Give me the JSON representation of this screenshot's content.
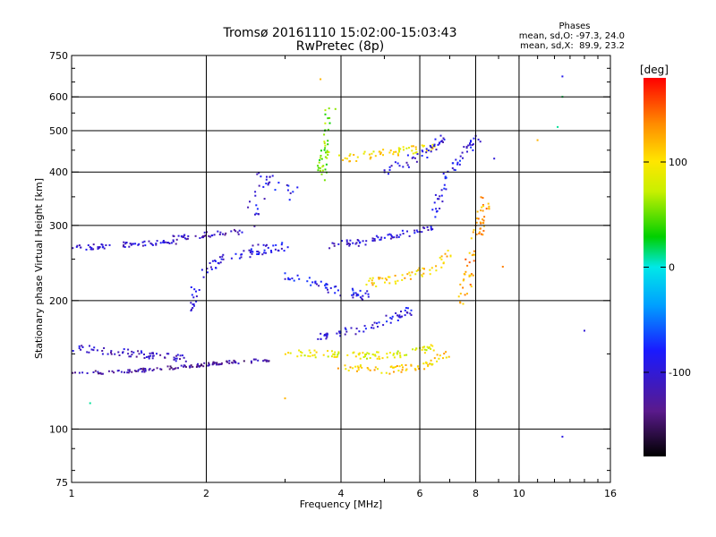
{
  "chart_data": {
    "type": "scatter",
    "title": "Tromsø 20161110 15:02:00-15:03:43",
    "subtitle": "RwPretec (8p)",
    "xlabel": "Frequency [MHz]",
    "ylabel": "Stationary phase Virtual Height [km]",
    "x_scale": "log",
    "y_scale": "log",
    "xlim": [
      1,
      16
    ],
    "ylim": [
      75,
      750
    ],
    "x_ticks": [
      1,
      2,
      4,
      6,
      8,
      10,
      16
    ],
    "x_tick_labels": [
      "1",
      "2",
      "4",
      "6",
      "8",
      "10",
      "16"
    ],
    "y_ticks": [
      75,
      100,
      200,
      300,
      400,
      500,
      600,
      750
    ],
    "y_tick_labels": [
      "75",
      "100",
      "200",
      "300",
      "400",
      "500",
      "600",
      "750"
    ],
    "grid": true,
    "grid_x": [
      2,
      4,
      6,
      8,
      10
    ],
    "grid_y": [
      100,
      200,
      300,
      400,
      500,
      600
    ],
    "phases_box": {
      "title": "Phases",
      "line_o": "mean, sd,O: -97.3, 24.0",
      "line_x": "mean, sd,X:  89.9, 23.2"
    },
    "colorbar": {
      "label": "[deg]",
      "range": [
        -180,
        180
      ],
      "ticks": [
        100,
        0,
        -100
      ],
      "tick_labels": [
        "100",
        "0",
        "-100"
      ],
      "colormap": "rainbow (black-purple-blue-cyan-green-yellow-orange-red)"
    },
    "traces": [
      {
        "x": [
          1.0,
          1.4,
          1.8,
          2.2,
          2.8
        ],
        "y": [
          135,
          137,
          140,
          143,
          145
        ],
        "phase": -125,
        "spread": 2
      },
      {
        "x": [
          1.0,
          1.3,
          1.7
        ],
        "y": [
          265,
          270,
          275
        ],
        "phase": -105,
        "spread": 3
      },
      {
        "x": [
          1.7,
          2.0,
          2.4
        ],
        "y": [
          280,
          285,
          290
        ],
        "phase": -110,
        "spread": 3
      },
      {
        "x": [
          1.0,
          1.4,
          1.8
        ],
        "y": [
          155,
          150,
          146
        ],
        "phase": -110,
        "spread": 4
      },
      {
        "x": [
          1.8,
          2.0,
          2.5,
          3.0
        ],
        "y": [
          180,
          240,
          260,
          270
        ],
        "phase": -95,
        "spread": 6
      },
      {
        "x": [
          2.5,
          2.7,
          3.2
        ],
        "y": [
          300,
          400,
          350
        ],
        "phase": -95,
        "spread": 8
      },
      {
        "x": [
          3.0,
          3.8,
          4.5,
          5.5,
          6.5
        ],
        "y": [
          150,
          150,
          148,
          150,
          155
        ],
        "phase": 90,
        "spread": 4
      },
      {
        "x": [
          4.0,
          5.0,
          6.0,
          7.0
        ],
        "y": [
          140,
          137,
          140,
          150
        ],
        "phase": 110,
        "spread": 4
      },
      {
        "x": [
          3.5,
          4.2,
          5.0,
          5.8
        ],
        "y": [
          165,
          170,
          180,
          190
        ],
        "phase": -95,
        "spread": 5
      },
      {
        "x": [
          3.0,
          3.5,
          4.0,
          4.6
        ],
        "y": [
          230,
          220,
          210,
          205
        ],
        "phase": -90,
        "spread": 5
      },
      {
        "x": [
          3.8,
          4.5,
          5.5,
          6.5
        ],
        "y": [
          270,
          275,
          285,
          300
        ],
        "phase": -100,
        "spread": 4
      },
      {
        "x": [
          4.5,
          5.5,
          6.5,
          7.0
        ],
        "y": [
          220,
          225,
          240,
          260
        ],
        "phase": 110,
        "spread": 5
      },
      {
        "x": [
          4.0,
          4.8,
          5.6,
          6.5
        ],
        "y": [
          430,
          440,
          450,
          460
        ],
        "phase": 100,
        "spread": 5
      },
      {
        "x": [
          5.0,
          5.8,
          6.3,
          6.8
        ],
        "y": [
          400,
          430,
          450,
          480
        ],
        "phase": -100,
        "spread": 6
      },
      {
        "x": [
          3.6,
          3.7,
          3.8
        ],
        "y": [
          380,
          470,
          560
        ],
        "phase": 50,
        "spread": 6
      },
      {
        "x": [
          7.5,
          8.0,
          8.5
        ],
        "y": [
          200,
          280,
          350
        ],
        "phase": 130,
        "spread": 6
      },
      {
        "x": [
          6.5,
          7.0,
          8.0
        ],
        "y": [
          320,
          400,
          480
        ],
        "phase": -90,
        "spread": 6
      }
    ],
    "outliers": [
      {
        "x": 12.5,
        "y": 670,
        "phase": -90
      },
      {
        "x": 12.5,
        "y": 600,
        "phase": 20
      },
      {
        "x": 12.2,
        "y": 510,
        "phase": 10
      },
      {
        "x": 11.0,
        "y": 475,
        "phase": 120
      },
      {
        "x": 14.0,
        "y": 170,
        "phase": -100
      },
      {
        "x": 12.5,
        "y": 96,
        "phase": -95
      },
      {
        "x": 8.8,
        "y": 430,
        "phase": -100
      },
      {
        "x": 9.2,
        "y": 240,
        "phase": 140
      },
      {
        "x": 3.6,
        "y": 660,
        "phase": 120
      },
      {
        "x": 1.1,
        "y": 115,
        "phase": 10
      },
      {
        "x": 3.0,
        "y": 118,
        "phase": 120
      }
    ]
  }
}
